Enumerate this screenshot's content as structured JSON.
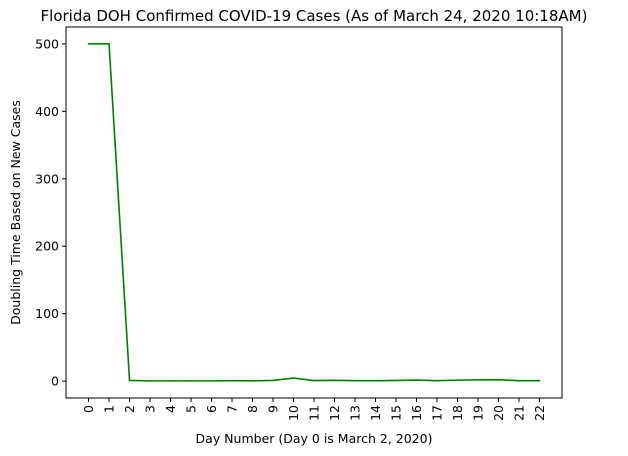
{
  "chart_data": {
    "type": "line",
    "title": "Florida DOH Confirmed COVID-19 Cases (As of March 24, 2020 10:18AM)",
    "xlabel": "Day Number (Day 0 is March 2, 2020)",
    "ylabel": "Doubling Time Based on New Cases",
    "x": [
      0,
      1,
      2,
      3,
      4,
      5,
      6,
      7,
      8,
      9,
      10,
      11,
      12,
      13,
      14,
      15,
      16,
      17,
      18,
      19,
      20,
      21,
      22
    ],
    "x_tick_labels": [
      "0",
      "1",
      "2",
      "3",
      "4",
      "5",
      "6",
      "7",
      "8",
      "9",
      "10",
      "11",
      "12",
      "13",
      "14",
      "15",
      "16",
      "17",
      "18",
      "19",
      "20",
      "21",
      "22"
    ],
    "y_ticks": [
      0,
      100,
      200,
      300,
      400,
      500
    ],
    "y_tick_labels": [
      "0",
      "100",
      "200",
      "300",
      "400",
      "500"
    ],
    "xlim": [
      -1.1,
      23.1
    ],
    "ylim": [
      -25,
      525
    ],
    "grid": false,
    "series": [
      {
        "color": "#008000",
        "values": [
          500,
          500,
          1.0,
          0.4,
          0.4,
          0.4,
          0.4,
          0.6,
          0.5,
          1.0,
          4.5,
          0.8,
          1.2,
          0.6,
          0.6,
          1.0,
          1.6,
          0.6,
          1.5,
          2.0,
          2.2,
          0.6,
          0.6
        ]
      }
    ]
  }
}
